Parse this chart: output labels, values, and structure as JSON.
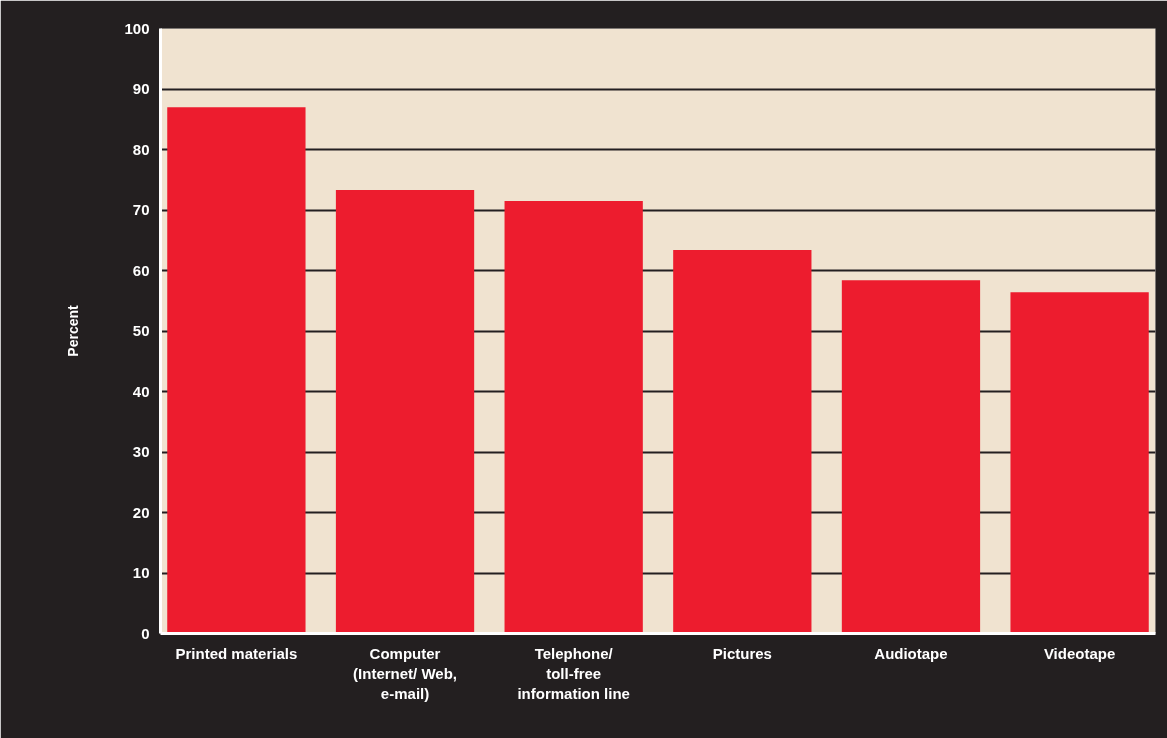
{
  "chart_data": {
    "type": "bar",
    "ylabel": "Percent",
    "categories": [
      "Printed materials",
      "Computer\n(Internet/ Web,\ne-mail)",
      "Telephone/\ntoll-free\ninformation line",
      "Pictures",
      "Audiotape",
      "Videotape"
    ],
    "values": [
      87.0,
      73.3,
      71.5,
      63.4,
      58.4,
      56.4
    ],
    "color": "#ed1c2e",
    "ylim": [
      0,
      100
    ],
    "yticks": [
      0,
      10,
      20,
      30,
      40,
      50,
      60,
      70,
      80,
      90,
      100
    ],
    "grid": "y",
    "bands": [
      {
        "axis": "y",
        "from": 0,
        "to": 100,
        "color": "#f0e3d0"
      }
    ]
  }
}
